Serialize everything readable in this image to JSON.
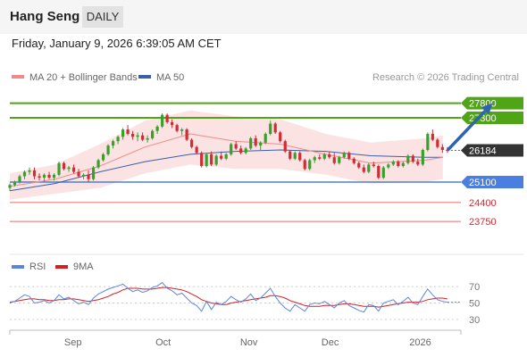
{
  "header": {
    "symbol": "Hang Seng",
    "timeframe": "DAILY"
  },
  "timestamp": "Friday, January 9, 2026 6:39:05 AM CET",
  "legend": {
    "ma20_label": "MA 20 + Bollinger Bands",
    "ma50_label": "MA 50",
    "credit": "Research © 2026 Trading Central"
  },
  "rsi_legend": {
    "rsi_label": "RSI",
    "ma_label": "9MA"
  },
  "colors": {
    "candle_up": "#3aa02c",
    "candle_down": "#cf2c33",
    "ma20": "#f08a8a",
    "ma50": "#3b5ea8",
    "band_fill": "#fbdada",
    "resistance": "#4fa516",
    "support": "#4a7ee0",
    "lower": "#e86c6c",
    "forecast_arrow": "#2f63b0",
    "price_tag": "#333333",
    "rsi": "#5b86e0",
    "rsi_ma": "#d42020"
  },
  "chart_data": {
    "type": "candlestick",
    "y_range": [
      22900,
      28400
    ],
    "x_range": [
      0,
      100
    ],
    "x_tick_labels": [
      {
        "label": "Sep",
        "x": 14
      },
      {
        "label": "Oct",
        "x": 34
      },
      {
        "label": "Nov",
        "x": 53
      },
      {
        "label": "Dec",
        "x": 71
      },
      {
        "label": "2026",
        "x": 91
      }
    ],
    "levels": [
      {
        "value": 27800,
        "label": "27800",
        "kind": "resistance"
      },
      {
        "value": 27300,
        "label": "27300",
        "kind": "resistance"
      },
      {
        "value": 26184,
        "label": "26184",
        "kind": "last"
      },
      {
        "value": 25100,
        "label": "25100",
        "kind": "support"
      },
      {
        "value": 24400,
        "label": "24400",
        "kind": "support-minor"
      },
      {
        "value": 23750,
        "label": "23750",
        "kind": "support-minor"
      }
    ],
    "ohlc": [
      [
        24900,
        25050,
        24800,
        25000
      ],
      [
        25000,
        25150,
        24950,
        25100
      ],
      [
        25100,
        25350,
        25050,
        25300
      ],
      [
        25300,
        25500,
        25200,
        25450
      ],
      [
        25450,
        25600,
        25350,
        25500
      ],
      [
        25500,
        25600,
        25200,
        25300
      ],
      [
        25300,
        25400,
        25150,
        25250
      ],
      [
        25250,
        25400,
        25100,
        25350
      ],
      [
        25350,
        25450,
        25200,
        25250
      ],
      [
        25250,
        25400,
        25150,
        25350
      ],
      [
        25350,
        25800,
        25300,
        25750
      ],
      [
        25750,
        25800,
        25500,
        25550
      ],
      [
        25550,
        25650,
        25450,
        25600
      ],
      [
        25600,
        25700,
        25400,
        25450
      ],
      [
        25450,
        25550,
        25250,
        25300
      ],
      [
        25300,
        25400,
        25200,
        25350
      ],
      [
        25350,
        25500,
        25100,
        25200
      ],
      [
        25200,
        25650,
        25150,
        25600
      ],
      [
        25600,
        25900,
        25550,
        25850
      ],
      [
        25850,
        26100,
        25800,
        26050
      ],
      [
        26050,
        26400,
        26000,
        26350
      ],
      [
        26350,
        26550,
        26250,
        26500
      ],
      [
        26500,
        26700,
        26400,
        26650
      ],
      [
        26650,
        26950,
        26550,
        26900
      ],
      [
        26900,
        27050,
        26700,
        26750
      ],
      [
        26750,
        26850,
        26550,
        26650
      ],
      [
        26650,
        26800,
        26500,
        26700
      ],
      [
        26700,
        26800,
        26500,
        26550
      ],
      [
        26550,
        26700,
        26450,
        26600
      ],
      [
        26600,
        26900,
        26550,
        26850
      ],
      [
        26850,
        27050,
        26750,
        27000
      ],
      [
        27000,
        27450,
        26950,
        27400
      ],
      [
        27400,
        27450,
        27100,
        27150
      ],
      [
        27150,
        27250,
        26950,
        27050
      ],
      [
        27050,
        27100,
        26800,
        26850
      ],
      [
        26850,
        26950,
        26700,
        26900
      ],
      [
        26900,
        26950,
        26500,
        26550
      ],
      [
        26550,
        26600,
        26250,
        26300
      ],
      [
        26300,
        26350,
        26050,
        26100
      ],
      [
        26100,
        26150,
        25600,
        25650
      ],
      [
        25650,
        26100,
        25600,
        26050
      ],
      [
        26050,
        26150,
        25650,
        25700
      ],
      [
        25700,
        26050,
        25650,
        26000
      ],
      [
        26000,
        26150,
        25850,
        25900
      ],
      [
        25900,
        26100,
        25850,
        26050
      ],
      [
        26050,
        26450,
        26000,
        26400
      ],
      [
        26400,
        26500,
        26200,
        26250
      ],
      [
        26250,
        26350,
        26050,
        26100
      ],
      [
        26100,
        26300,
        26050,
        26250
      ],
      [
        26250,
        26650,
        26200,
        26600
      ],
      [
        26600,
        26700,
        26300,
        26350
      ],
      [
        26350,
        26500,
        26200,
        26450
      ],
      [
        26450,
        26800,
        26400,
        26750
      ],
      [
        26750,
        27200,
        26700,
        27100
      ],
      [
        27100,
        27150,
        26750,
        26800
      ],
      [
        26800,
        26850,
        26450,
        26500
      ],
      [
        26500,
        26550,
        26100,
        26150
      ],
      [
        26150,
        26200,
        25850,
        25900
      ],
      [
        25900,
        26150,
        25850,
        26100
      ],
      [
        26100,
        26150,
        25800,
        25850
      ],
      [
        25850,
        25900,
        25500,
        25550
      ],
      [
        25550,
        25900,
        25500,
        25850
      ],
      [
        25850,
        26000,
        25750,
        25950
      ],
      [
        25950,
        26050,
        25850,
        25900
      ],
      [
        25900,
        26100,
        25850,
        26050
      ],
      [
        26050,
        26150,
        25900,
        25950
      ],
      [
        25950,
        26100,
        25700,
        25750
      ],
      [
        25750,
        26000,
        25700,
        25950
      ],
      [
        25950,
        26150,
        25900,
        26100
      ],
      [
        26100,
        26150,
        25850,
        25900
      ],
      [
        25900,
        25950,
        25700,
        25750
      ],
      [
        25750,
        25800,
        25550,
        25600
      ],
      [
        25600,
        25700,
        25400,
        25450
      ],
      [
        25450,
        25750,
        25400,
        25700
      ],
      [
        25700,
        25800,
        25600,
        25650
      ],
      [
        25650,
        25700,
        25200,
        25250
      ],
      [
        25250,
        25650,
        25200,
        25600
      ],
      [
        25600,
        25750,
        25550,
        25700
      ],
      [
        25700,
        25850,
        25650,
        25800
      ],
      [
        25800,
        25850,
        25600,
        25650
      ],
      [
        25650,
        25800,
        25600,
        25750
      ],
      [
        25750,
        26050,
        25700,
        26000
      ],
      [
        26000,
        26050,
        25750,
        25800
      ],
      [
        25800,
        25900,
        25650,
        25700
      ],
      [
        25700,
        26250,
        25650,
        26200
      ],
      [
        26200,
        26800,
        26150,
        26750
      ],
      [
        26750,
        26900,
        26500,
        26550
      ],
      [
        26550,
        26600,
        26250,
        26300
      ],
      [
        26300,
        26400,
        26100,
        26200
      ],
      [
        26200,
        26300,
        26100,
        26184
      ]
    ],
    "ma20": [
      [
        0,
        24950
      ],
      [
        10,
        25200
      ],
      [
        20,
        25650
      ],
      [
        30,
        26300
      ],
      [
        40,
        26750
      ],
      [
        50,
        26500
      ],
      [
        60,
        26400
      ],
      [
        70,
        26050
      ],
      [
        80,
        25750
      ],
      [
        92,
        25850
      ],
      [
        96,
        25950
      ]
    ],
    "ma50": [
      [
        0,
        24800
      ],
      [
        10,
        25050
      ],
      [
        20,
        25450
      ],
      [
        30,
        25800
      ],
      [
        40,
        26050
      ],
      [
        50,
        26150
      ],
      [
        60,
        26200
      ],
      [
        70,
        26150
      ],
      [
        80,
        26000
      ],
      [
        92,
        25950
      ],
      [
        96,
        25950
      ]
    ],
    "bb_upper": [
      [
        0,
        25400
      ],
      [
        10,
        25700
      ],
      [
        20,
        26400
      ],
      [
        30,
        27200
      ],
      [
        40,
        27550
      ],
      [
        50,
        27350
      ],
      [
        60,
        27250
      ],
      [
        70,
        26750
      ],
      [
        80,
        26450
      ],
      [
        92,
        26600
      ],
      [
        96,
        26700
      ]
    ],
    "bb_lower": [
      [
        0,
        24500
      ],
      [
        10,
        24700
      ],
      [
        20,
        24900
      ],
      [
        30,
        25400
      ],
      [
        40,
        25700
      ],
      [
        50,
        25550
      ],
      [
        60,
        25550
      ],
      [
        70,
        25350
      ],
      [
        80,
        25050
      ],
      [
        92,
        25100
      ],
      [
        96,
        25200
      ]
    ],
    "forecast": {
      "from": [
        97,
        26184
      ],
      "to": [
        107,
        27800
      ]
    },
    "rsi": {
      "y_range": [
        20,
        80
      ],
      "ticks": [
        70,
        50,
        30
      ],
      "rsi_values": [
        50,
        52,
        56,
        60,
        58,
        50,
        51,
        53,
        50,
        53,
        60,
        55,
        57,
        53,
        49,
        51,
        48,
        56,
        61,
        64,
        67,
        69,
        71,
        73,
        68,
        64,
        66,
        63,
        65,
        69,
        71,
        75,
        68,
        65,
        60,
        62,
        56,
        50,
        47,
        40,
        52,
        42,
        51,
        48,
        52,
        58,
        54,
        51,
        55,
        61,
        53,
        56,
        62,
        68,
        58,
        50,
        44,
        40,
        48,
        44,
        40,
        48,
        50,
        49,
        52,
        48,
        44,
        50,
        53,
        47,
        44,
        41,
        39,
        48,
        47,
        40,
        50,
        52,
        54,
        48,
        52,
        57,
        50,
        48,
        58,
        67,
        60,
        54,
        52,
        51
      ],
      "ma_values": [
        51,
        52,
        53,
        54,
        55,
        55,
        54,
        54,
        53,
        53,
        54,
        54,
        55,
        55,
        54,
        53,
        52,
        53,
        54,
        56,
        58,
        61,
        63,
        66,
        68,
        68,
        68,
        67,
        67,
        67,
        68,
        69,
        69,
        68,
        67,
        66,
        64,
        61,
        58,
        54,
        52,
        50,
        49,
        48,
        48,
        50,
        51,
        52,
        53,
        54,
        55,
        56,
        57,
        59,
        59,
        58,
        56,
        53,
        51,
        49,
        47,
        46,
        46,
        46,
        47,
        47,
        47,
        48,
        49,
        49,
        48,
        47,
        46,
        46,
        46,
        45,
        46,
        47,
        48,
        49,
        50,
        51,
        51,
        51,
        52,
        54,
        55,
        56,
        56,
        55
      ]
    }
  }
}
